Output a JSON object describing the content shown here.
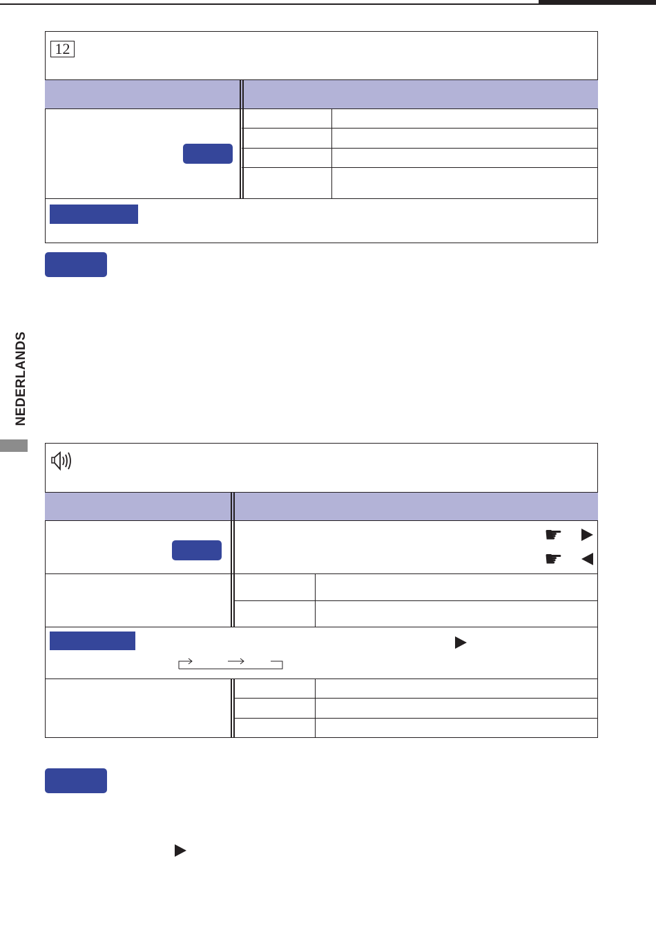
{
  "side_label": "NEDERLANDS",
  "section1": {
    "icon_label": "12",
    "icon_name": "picture-adjust-12-icon"
  },
  "section2": {
    "icon_name": "speaker-audio-icon"
  },
  "icons": {
    "hand_right": "☛",
    "arrow_right_glyph": "→"
  },
  "colors": {
    "header_band": "#b3b3d7",
    "badge": "#35469a",
    "side_tab": "#8c8c8c"
  }
}
